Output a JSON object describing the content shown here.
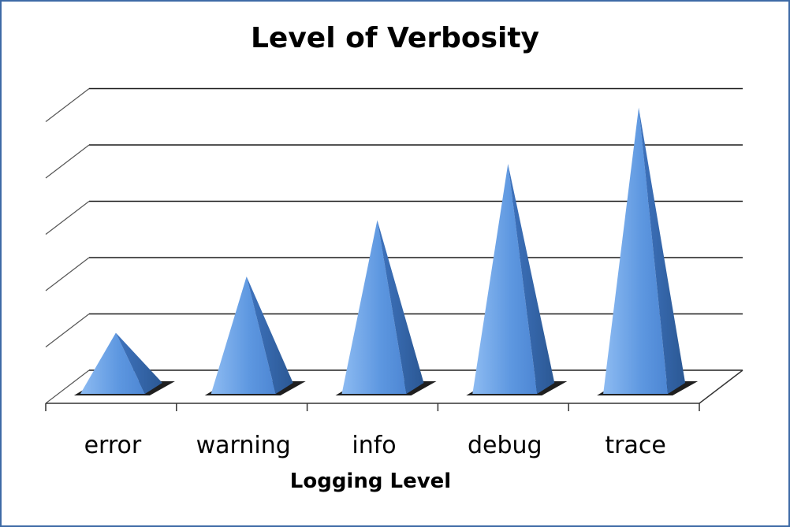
{
  "chart_data": {
    "type": "bar",
    "title": "Level of Verbosity",
    "xlabel": "Logging Level",
    "ylabel": "",
    "categories": [
      "error",
      "warning",
      "info",
      "debug",
      "trace"
    ],
    "values": [
      1,
      2,
      3,
      4,
      5
    ],
    "ylim": [
      0,
      5.5
    ],
    "grid": true,
    "style": "3d-pyramid",
    "colors": {
      "bar": "#5b93dd",
      "bar_light": "#9cc3f5",
      "bar_dark": "#2f5f9e",
      "gridline": "#1a1a1a",
      "floor_shadow": "#222222",
      "border": "#3d6aa6"
    }
  }
}
